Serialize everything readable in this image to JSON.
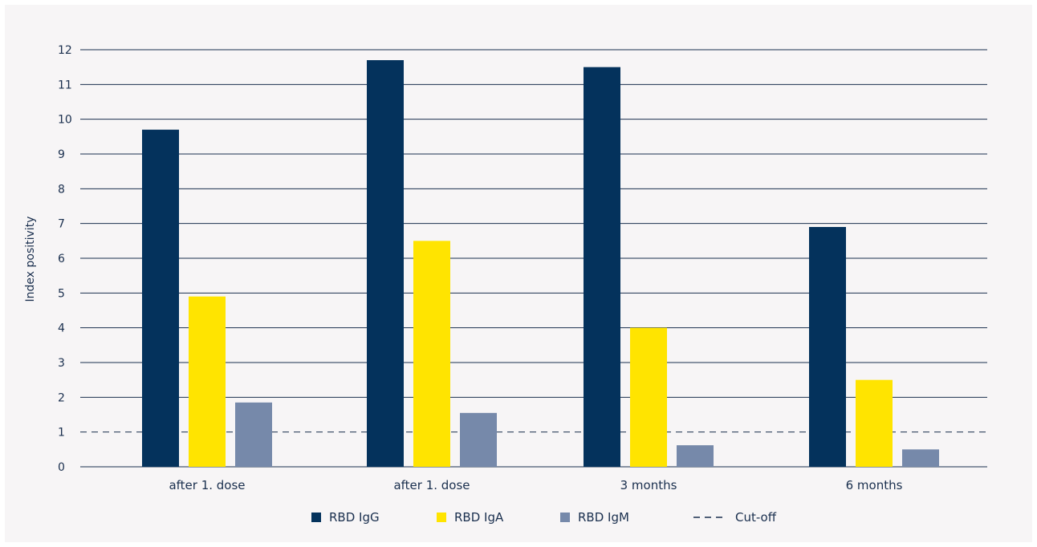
{
  "chart_data": {
    "type": "bar",
    "ylabel": "Index positivity",
    "ylim": [
      0,
      12
    ],
    "yticks": [
      0,
      1,
      2,
      3,
      4,
      5,
      6,
      7,
      8,
      9,
      10,
      11,
      12
    ],
    "grid": true,
    "legend_position": "bottom",
    "categories": [
      "after 1. dose",
      "after 1. dose",
      "3 months",
      "6 months"
    ],
    "series": [
      {
        "name": "RBD IgG",
        "color": "#04325c",
        "values": [
          9.7,
          11.7,
          11.5,
          6.9
        ]
      },
      {
        "name": "RBD IgA",
        "color": "#ffe400",
        "values": [
          4.9,
          6.5,
          4.0,
          2.5
        ]
      },
      {
        "name": "RBD IgM",
        "color": "#7689aa",
        "values": [
          1.85,
          1.55,
          0.62,
          0.5
        ]
      }
    ],
    "reference_line": {
      "name": "Cut-off",
      "value": 1,
      "style": "dashed",
      "color": "#1a2f4e"
    },
    "text_color": "#1a2f4e",
    "grid_color": "#1a2f4e",
    "background": "#f7f5f6"
  }
}
